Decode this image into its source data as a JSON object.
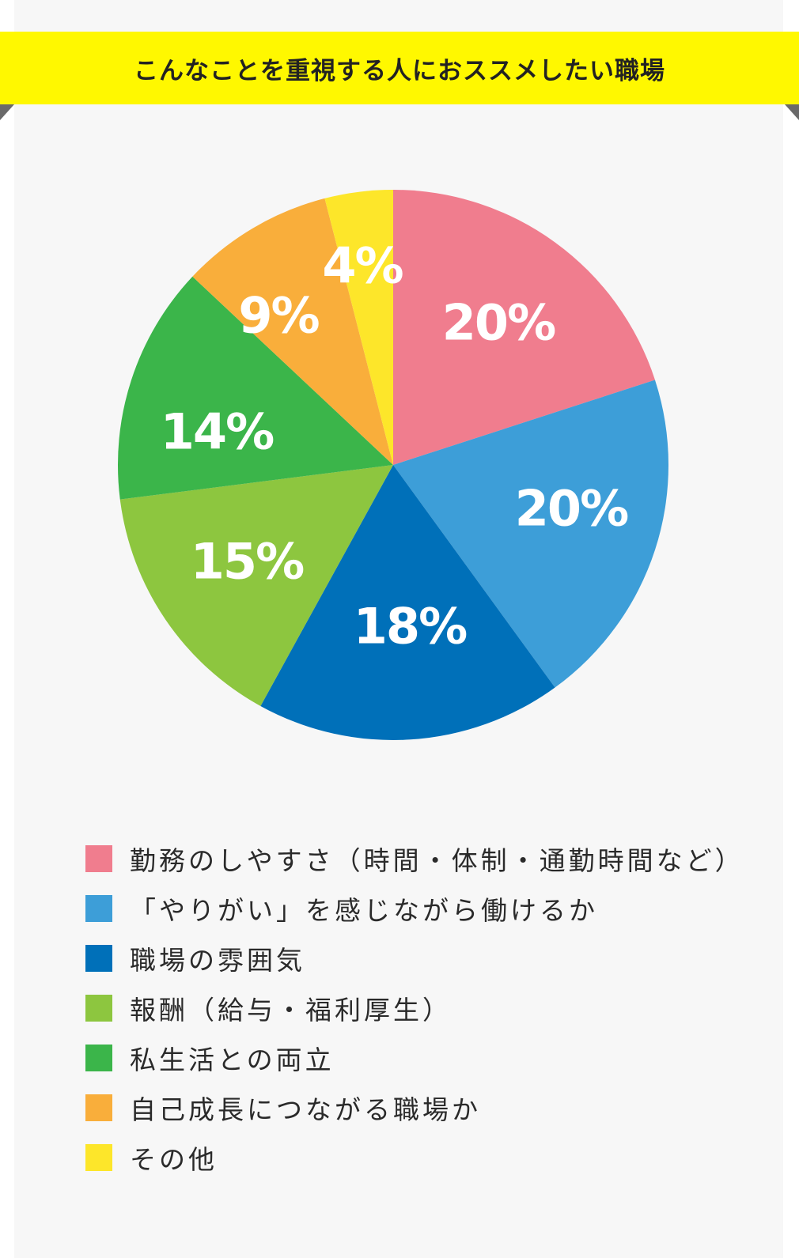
{
  "header": {
    "title": "こんなことを重視する人におススメしたい職場"
  },
  "chart_data": {
    "type": "pie",
    "series": [
      {
        "name": "勤務のしやすさ（時間・体制・通勤時間など）",
        "value": 20,
        "label": "20%",
        "color": "#f07d8e"
      },
      {
        "name": "「やりがい」を感じながら働けるか",
        "value": 20,
        "label": "20%",
        "color": "#3d9ed8"
      },
      {
        "name": "職場の雰囲気",
        "value": 18,
        "label": "18%",
        "color": "#0070b9"
      },
      {
        "name": "報酬（給与・福利厚生）",
        "value": 15,
        "label": "15%",
        "color": "#8dc63f"
      },
      {
        "name": "私生活との両立",
        "value": 14,
        "label": "14%",
        "color": "#3bb54a"
      },
      {
        "name": "自己成長につながる職場か",
        "value": 9,
        "label": "9%",
        "color": "#f9ae3b"
      },
      {
        "name": "その他",
        "value": 4,
        "label": "4%",
        "color": "#fde62a"
      }
    ],
    "start": "12 o'clock",
    "direction": "clockwise",
    "legend_position": "bottom"
  }
}
